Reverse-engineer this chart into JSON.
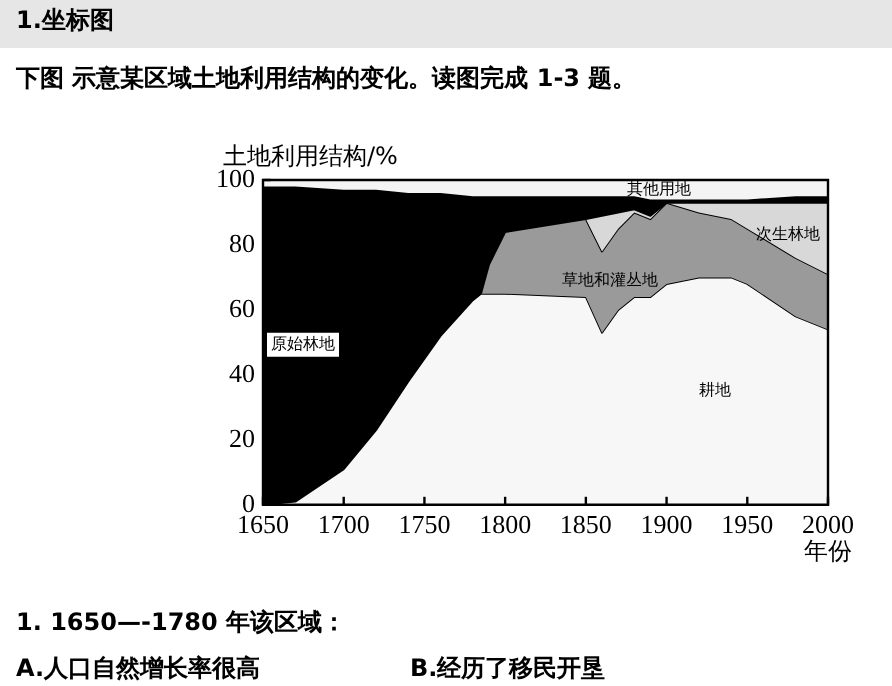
{
  "chart_data": {
    "type": "area",
    "title": "1.坐标图",
    "subtitle": "下图 示意某区域土地利用结构的变化。读图完成 1-3 题。",
    "ylabel": "土地利用结构/%",
    "xlabel": "年份",
    "annotations": [
      "1. 1650—-1780 年该区域：",
      "A.人口自然增长率很高",
      "B.经历了移民开垦"
    ],
    "stacked": true,
    "legend": false,
    "grid": false,
    "x": [
      1650,
      1670,
      1700,
      1720,
      1740,
      1760,
      1780,
      1785,
      1790,
      1800,
      1850,
      1860,
      1870,
      1880,
      1890,
      1900,
      1920,
      1940,
      1950,
      1980,
      2000
    ],
    "xlim": [
      1650,
      2000
    ],
    "xticks": [
      1650,
      1700,
      1750,
      1800,
      1850,
      1900,
      1950,
      2000
    ],
    "ylim": [
      0,
      100
    ],
    "yticks": [
      0,
      20,
      40,
      60,
      80,
      100
    ],
    "series": [
      {
        "name": "耕地",
        "color": "#f7f7f7",
        "values": [
          0,
          1,
          11,
          23,
          38,
          52,
          63,
          65,
          65,
          65,
          64,
          53,
          60,
          64,
          64,
          68,
          70,
          70,
          68,
          58,
          54
        ]
      },
      {
        "name": "草地和灌丛地",
        "color": "#9a9a9a",
        "values": [
          null,
          null,
          null,
          null,
          null,
          null,
          null,
          0,
          9,
          19,
          24,
          25,
          25,
          26,
          24,
          25,
          20,
          18,
          17,
          18,
          17
        ]
      },
      {
        "name": "次生林地",
        "color": "#d8d8d8",
        "values": [
          null,
          null,
          null,
          null,
          null,
          null,
          null,
          null,
          null,
          null,
          0,
          11,
          5,
          1,
          1,
          0,
          3,
          5,
          8,
          17,
          22
        ]
      },
      {
        "name": "原始林地",
        "color": "#000000",
        "values": [
          98,
          97,
          86,
          74,
          58,
          44,
          32,
          30,
          21,
          11,
          7,
          6,
          5,
          4,
          5,
          1,
          1,
          1,
          1,
          2,
          2
        ]
      },
      {
        "name": "其他用地",
        "color": "#f4f4f4",
        "values": [
          2,
          2,
          3,
          3,
          4,
          4,
          5,
          5,
          5,
          5,
          5,
          5,
          5,
          5,
          6,
          6,
          6,
          6,
          6,
          5,
          5
        ]
      }
    ]
  }
}
